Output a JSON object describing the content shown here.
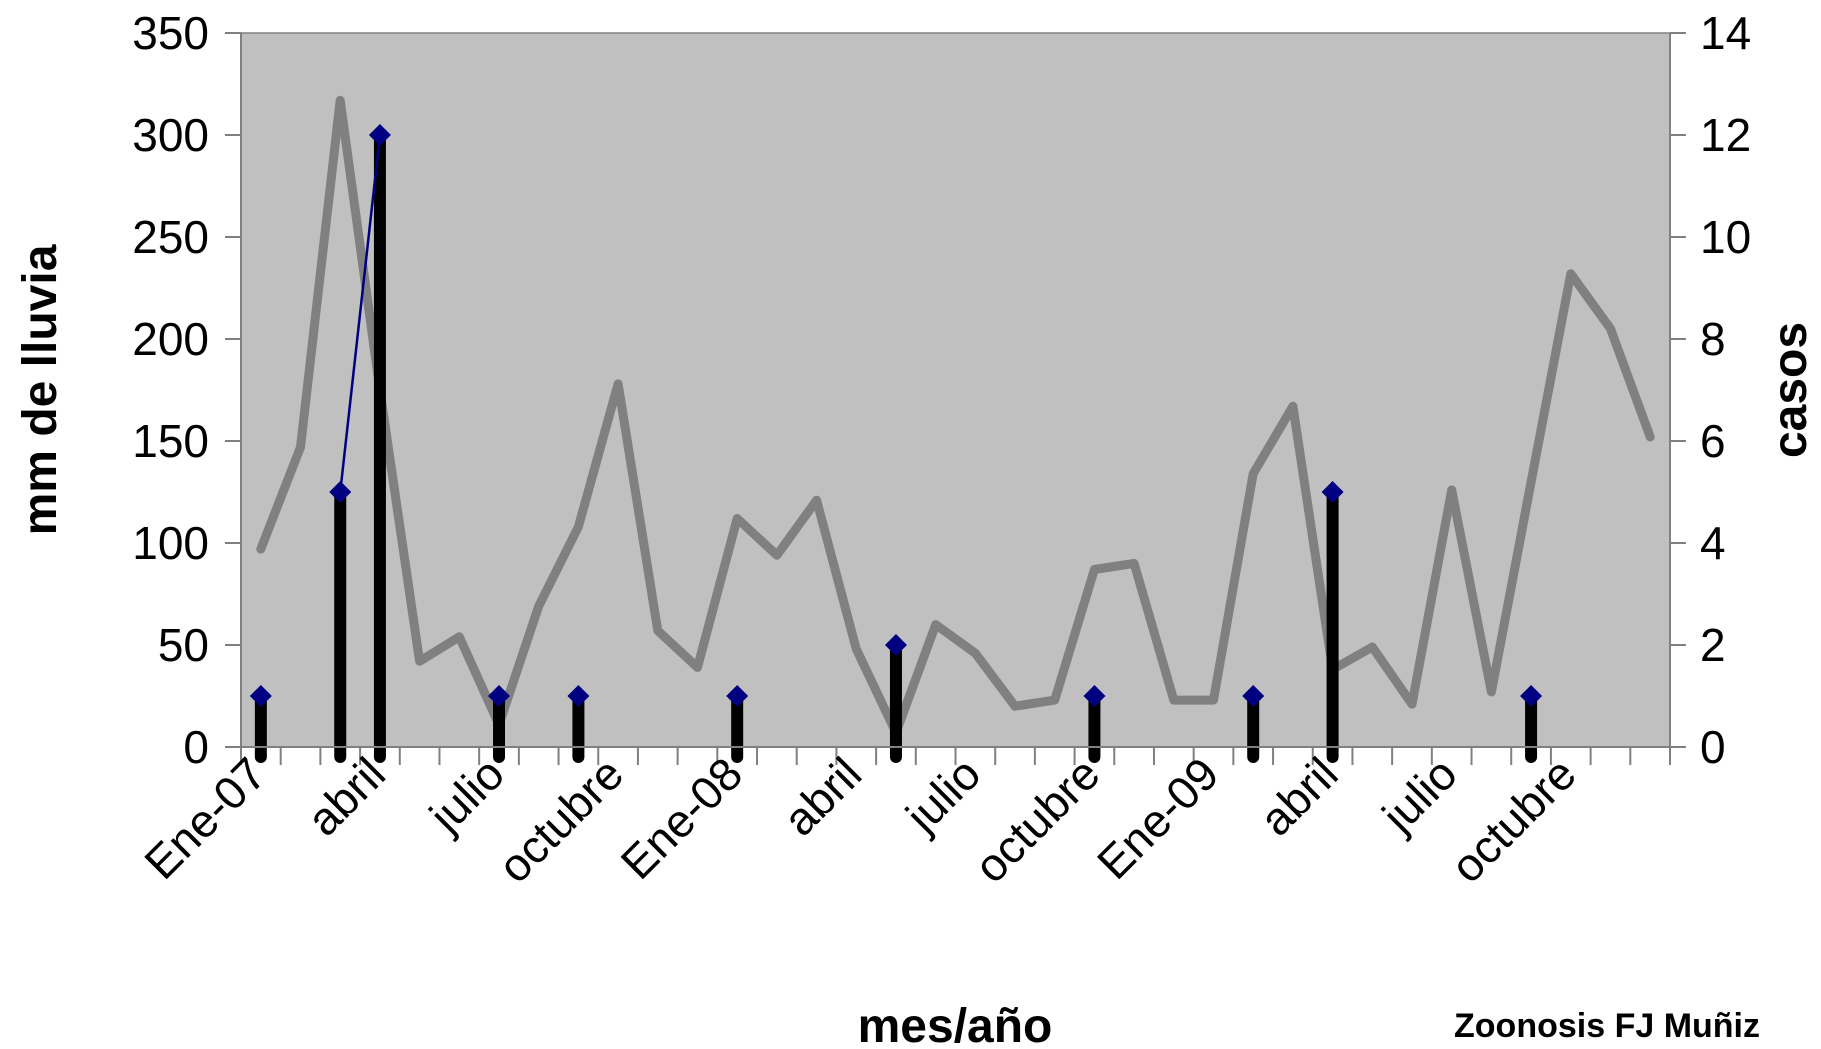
{
  "chart_data": {
    "type": "line",
    "title": "",
    "xlabel": "mes/año",
    "ylabel": "mm de lluvia",
    "y2label": "casos",
    "credit": "Zoonosis FJ Muñiz",
    "ylim": [
      0,
      350
    ],
    "y2lim": [
      0,
      14
    ],
    "yticks": [
      0,
      50,
      100,
      150,
      200,
      250,
      300,
      350
    ],
    "y2ticks": [
      0,
      2,
      4,
      6,
      8,
      10,
      12,
      14
    ],
    "x_tick_labels": [
      "Ene-07",
      "abril",
      "julio",
      "octubre",
      "Ene-08",
      "abril",
      "julio",
      "octubre",
      "Ene-09",
      "abril",
      "julio",
      "octubre"
    ],
    "x_tick_label_every": 3,
    "n_months": 36,
    "grid": false,
    "legend": "none",
    "plot_background": "#c0c0c0",
    "series": [
      {
        "axis": "left",
        "style": "line",
        "color": "#808080",
        "values": [
          97,
          147,
          317,
          175,
          42,
          54,
          11,
          69,
          108,
          178,
          57,
          39,
          112,
          94,
          121,
          48,
          7,
          60,
          46,
          20,
          23,
          87,
          90,
          23,
          23,
          134,
          167,
          38,
          49,
          21,
          126,
          27,
          130,
          232,
          205,
          152
        ]
      },
      {
        "axis": "right",
        "style": "line+drop",
        "color": "#000080",
        "marker": "diamond",
        "points": [
          {
            "month": 1,
            "value": 1
          },
          {
            "month": 3,
            "value": 5
          },
          {
            "month": 4,
            "value": 12
          },
          {
            "month": 7,
            "value": 1
          },
          {
            "month": 9,
            "value": 1
          },
          {
            "month": 13,
            "value": 1
          },
          {
            "month": 17,
            "value": 2
          },
          {
            "month": 22,
            "value": 1
          },
          {
            "month": 26,
            "value": 1
          },
          {
            "month": 28,
            "value": 5
          },
          {
            "month": 33,
            "value": 1
          }
        ]
      }
    ]
  }
}
